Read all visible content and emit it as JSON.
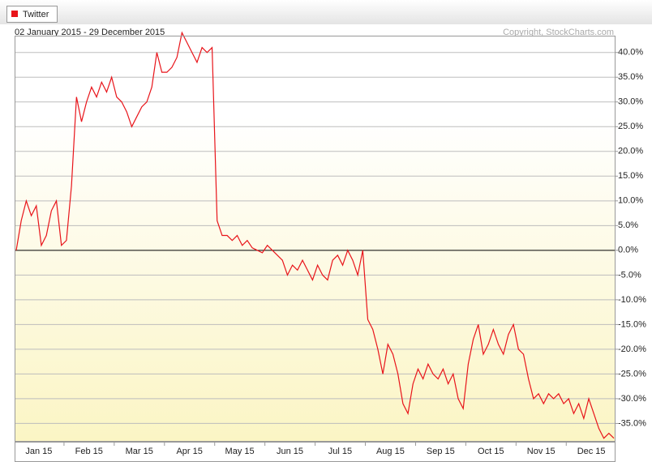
{
  "chart_data": {
    "type": "line",
    "subtitle": "02 January 2015 - 29 December 2015",
    "annotation": "Copyright, StockCharts.com",
    "categories": [
      "Jan 15",
      null,
      null,
      null,
      null,
      null,
      null,
      null,
      null,
      null,
      "Feb 15",
      null,
      null,
      null,
      null,
      null,
      null,
      null,
      null,
      null,
      "Mar 15",
      null,
      null,
      null,
      null,
      null,
      null,
      null,
      null,
      null,
      "Apr 15",
      null,
      null,
      null,
      null,
      null,
      null,
      null,
      null,
      null,
      "May 15",
      null,
      null,
      null,
      null,
      null,
      null,
      null,
      null,
      null,
      "Jun 15",
      null,
      null,
      null,
      null,
      null,
      null,
      null,
      null,
      null,
      "Jul 15",
      null,
      null,
      null,
      null,
      null,
      null,
      null,
      null,
      null,
      "Aug 15",
      null,
      null,
      null,
      null,
      null,
      null,
      null,
      null,
      null,
      "Sep 15",
      null,
      null,
      null,
      null,
      null,
      null,
      null,
      null,
      null,
      "Oct 15",
      null,
      null,
      null,
      null,
      null,
      null,
      null,
      null,
      null,
      "Nov 15",
      null,
      null,
      null,
      null,
      null,
      null,
      null,
      null,
      null,
      "Dec 15",
      null,
      null,
      null,
      null,
      null,
      null,
      null,
      null,
      null
    ],
    "series": [
      {
        "name": "Twitter",
        "color": "#e8141a",
        "values": [
          0,
          6,
          10,
          7,
          9,
          1,
          3,
          8,
          10,
          1,
          2,
          13,
          31,
          26,
          30,
          33,
          31,
          34,
          32,
          35,
          31,
          30,
          28,
          25,
          27,
          29,
          30,
          33,
          40,
          36,
          36,
          37,
          39,
          44,
          42,
          40,
          38,
          41,
          40,
          41,
          6,
          3,
          3,
          2,
          3,
          1,
          2,
          0.5,
          0,
          -0.5,
          1,
          0,
          -1,
          -2,
          -5,
          -3,
          -4,
          -2,
          -4,
          -6,
          -3,
          -5,
          -6,
          -2,
          -1,
          -3,
          0,
          -2,
          -5,
          0,
          -14,
          -16,
          -20,
          -25,
          -19,
          -21,
          -25,
          -31,
          -33,
          -27,
          -24,
          -26,
          -23,
          -25,
          -26,
          -24,
          -27,
          -25,
          -30,
          -32,
          -23,
          -18,
          -15,
          -21,
          -19,
          -16,
          -19,
          -21,
          -17,
          -15,
          -20,
          -21,
          -26,
          -30,
          -29,
          -31,
          -29,
          -30,
          -29,
          -31,
          -30,
          -33,
          -31,
          -34,
          -30,
          -33,
          -36,
          -38,
          -37,
          -38
        ]
      }
    ],
    "ylim": [
      -38.7,
      43.4
    ],
    "yticks": [
      {
        "value": -35,
        "label": "-35.0%"
      },
      {
        "value": -30,
        "label": "-30.0%"
      },
      {
        "value": -25,
        "label": "-25.0%"
      },
      {
        "value": -20,
        "label": "-20.0%"
      },
      {
        "value": -15,
        "label": "-15.0%"
      },
      {
        "value": -10,
        "label": "-10.0%"
      },
      {
        "value": -5,
        "label": "-5.0%"
      },
      {
        "value": 0,
        "label": "0.0%"
      },
      {
        "value": 5,
        "label": "5.0%"
      },
      {
        "value": 10,
        "label": "10.0%"
      },
      {
        "value": 15,
        "label": "15.0%"
      },
      {
        "value": 20,
        "label": "20.0%"
      },
      {
        "value": 25,
        "label": "25.0%"
      },
      {
        "value": 30,
        "label": "30.0%"
      },
      {
        "value": 35,
        "label": "35.0%"
      },
      {
        "value": 40,
        "label": "40.0%"
      }
    ],
    "grid": true
  }
}
